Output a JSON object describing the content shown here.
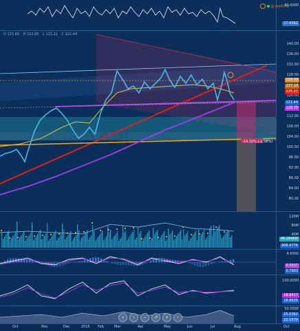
{
  "legend_top": "@ realtime",
  "ohlc": {
    "o": "O 121.60",
    "h": "H 122.60",
    "l": "L 121.21",
    "c": "C 121.44"
  },
  "top_axis": {
    "t1": "80.0000",
    "t2": "17.6562"
  },
  "price_axis": {
    "ticks": [
      "140.00",
      "136.00",
      "132.00",
      "128.00",
      "124.00",
      "120.00",
      "116.00",
      "112.00",
      "108.00",
      "104.00",
      "100.00",
      "96.00",
      "92.00",
      "88.00",
      "84.00",
      "80.00"
    ],
    "badges": {
      "b1": "129.39",
      "b2": "127.14",
      "b3": "125.22",
      "b4": "121.44",
      "b5": "120.70"
    }
  },
  "volume_axis": {
    "t1": "120M",
    "t2": "80M",
    "t3": "40M",
    "badge1": "46.2646M",
    "badge2": "908.477K"
  },
  "macd_axis": {
    "t1": "4.0000",
    "t2": "0.3537",
    "t3": "0.7903"
  },
  "stoch_axis": {
    "t1": "100.0000",
    "t2": "18.6417",
    "t3": "18.8625"
  },
  "bottom_axis": {
    "t1": "50.0000",
    "t2": "25.0362",
    "t3": "22.1570"
  },
  "measure_label": "-14.32% (-1.58%)",
  "time_axis": [
    "Oct",
    "Nov",
    "Dec",
    "2015",
    "Feb",
    "Mar",
    "Apr",
    "May",
    "Jun",
    "Jul",
    "Aug",
    "Oct"
  ],
  "colors": {
    "bg": "#0b2e5a",
    "candle": "#49b7ea",
    "trend_red": "#e0201b",
    "purple": "#b03de0",
    "gold": "#e8a51b",
    "ma_yellow": "#d9c43a"
  }
}
